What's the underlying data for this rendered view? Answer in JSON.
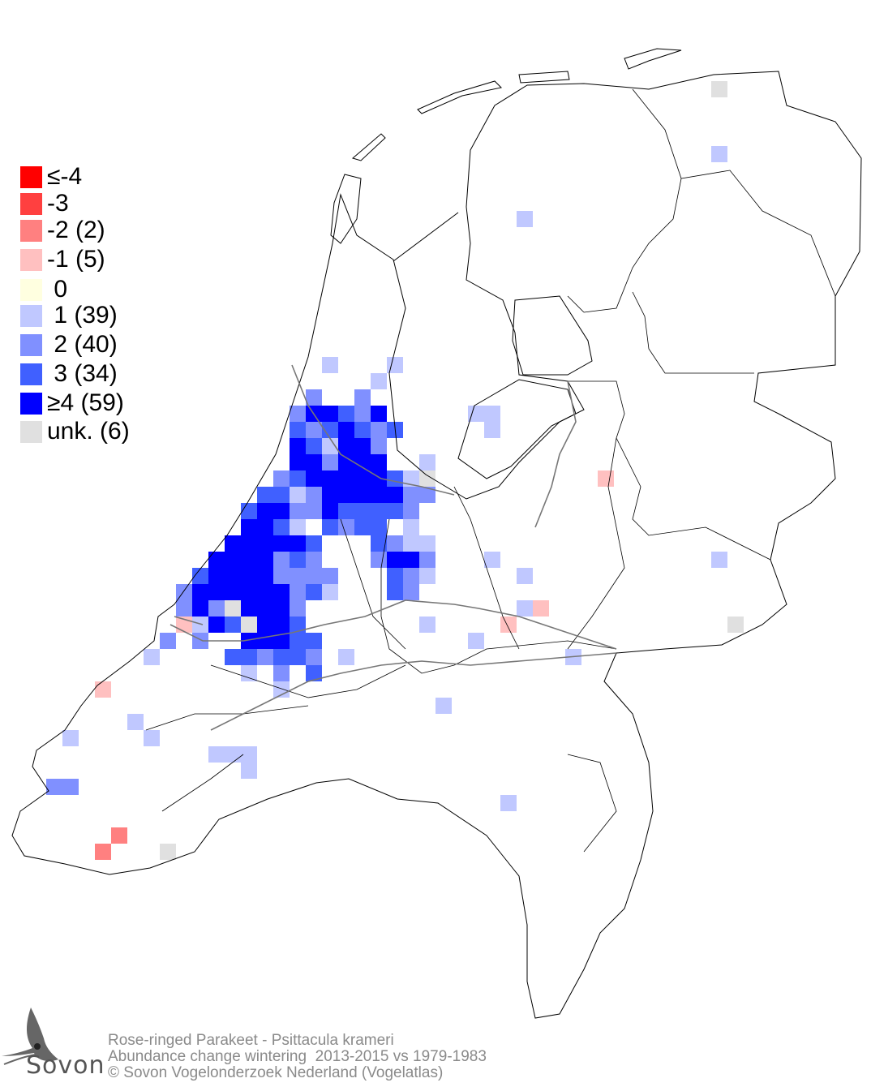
{
  "legend": {
    "items": [
      {
        "label": "≤-4",
        "color": "#ff0000",
        "level": -4
      },
      {
        "label": "-3",
        "color": "#ff4040",
        "level": -3
      },
      {
        "label": "-2 (2)",
        "color": "#ff8080",
        "level": -2
      },
      {
        "label": "-1 (5)",
        "color": "#ffc0c0",
        "level": -1
      },
      {
        "label": " 0",
        "color": "#ffffe0",
        "level": 0
      },
      {
        "label": " 1 (39)",
        "color": "#c0c8ff",
        "level": 1
      },
      {
        "label": " 2 (40)",
        "color": "#8090ff",
        "level": 2
      },
      {
        "label": " 3 (34)",
        "color": "#4060ff",
        "level": 3
      },
      {
        "label": "≥4 (59)",
        "color": "#0000ff",
        "level": 4
      },
      {
        "label": "unk. (6)",
        "color": "#e0e0e0",
        "level": "unk"
      }
    ]
  },
  "footer": {
    "species": "Rose-ringed Parakeet - Psittacula krameri",
    "description": "Abundance change wintering  2013-2015 vs 1979-1983",
    "copyright": "© Sovon Vogelonderzoek Nederland (Vogelatlas)"
  },
  "logo": {
    "text": "Sovon"
  },
  "colors": {
    "outline": "#000000",
    "rivers": "#777777",
    "footer_text": "#8a8a8a"
  }
}
